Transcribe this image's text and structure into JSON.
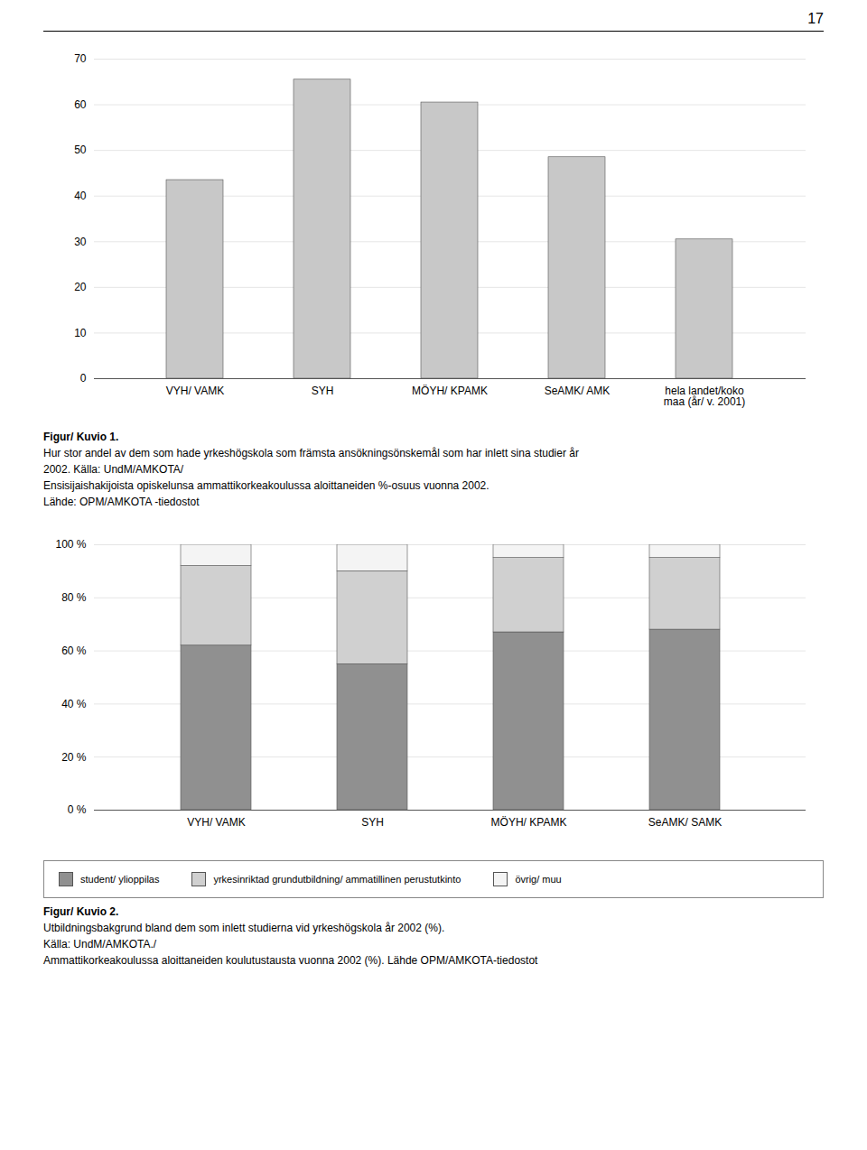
{
  "page_number": "17",
  "chart_data": [
    {
      "type": "bar",
      "title": "Figur/ Kuvio 1.",
      "caption": [
        "Hur stor andel av dem som hade yrkeshögskola som främsta ansökningsönskemål som har inlett sina studier år",
        "2002. Källa: UndM/AMKOTA/",
        "Ensisijaishakijoista opiskelunsa ammattikorkeakoulussa aloittaneiden %-osuus vuonna 2002.",
        "Lähde: OPM/AMKOTA -tiedostot"
      ],
      "categories": [
        "VYH/ VAMK",
        "SYH",
        "MÖYH/ KPAMK",
        "SeAMK/ AMK",
        "hela landet/koko\nmaa (år/ v. 2001)"
      ],
      "values": [
        43.5,
        65.5,
        60.5,
        48.5,
        30.5
      ],
      "color": "#c8c8c8",
      "ylim": [
        0,
        70
      ],
      "yticks": [
        0,
        10,
        20,
        30,
        40,
        50,
        60,
        70
      ],
      "grid": true
    },
    {
      "type": "bar",
      "title": "Figur/ Kuvio 2.",
      "caption": [
        "Utbildningsbakgrund bland dem som inlett studierna vid yrkeshögskola år 2002 (%).",
        "Källa: UndM/AMKOTA./",
        "Ammattikorkeakoulussa aloittaneiden koulutustausta vuonna 2002 (%). Lähde OPM/AMKOTA-tiedostot"
      ],
      "categories": [
        "VYH/ VAMK",
        "SYH",
        "MÖYH/ KPAMK",
        "SeAMK/ SAMK"
      ],
      "stacked": true,
      "series": [
        {
          "name": "student/ ylioppilas",
          "color": "#909090",
          "values": [
            62,
            55,
            67,
            68
          ]
        },
        {
          "name": "yrkesinriktad grundutbildning/ ammatillinen perustutkinto",
          "color": "#d0d0d0",
          "values": [
            30,
            35,
            28,
            27
          ]
        },
        {
          "name": "övrig/ muu",
          "color": "#f4f4f4",
          "values": [
            8,
            10,
            5,
            5
          ]
        }
      ],
      "ylim": [
        0,
        100
      ],
      "yticks": [
        {
          "value": 0,
          "label": "0 %"
        },
        {
          "value": 20,
          "label": "20 %"
        },
        {
          "value": 40,
          "label": "40 %"
        },
        {
          "value": 60,
          "label": "60 %"
        },
        {
          "value": 80,
          "label": "80 %"
        },
        {
          "value": 100,
          "label": "100 %"
        }
      ],
      "grid": true,
      "legend": "bottom"
    }
  ]
}
